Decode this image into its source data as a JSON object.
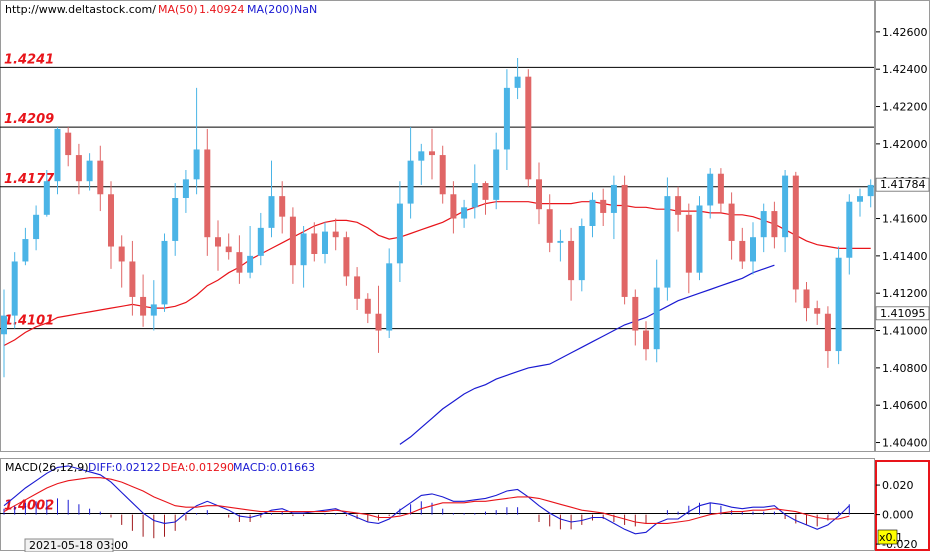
{
  "header": {
    "site": "http://www.deltastock.com/",
    "ma50_label": "MA(50)",
    "ma50_value": "1.40924",
    "ma200_label": "MA(200)",
    "ma200_value": "NaN"
  },
  "macd_header": {
    "name": "MACD(26,12,9)",
    "diff": "DIFF:0.02122",
    "dea": "DEA:0.01290",
    "macd": "MACD:0.01663"
  },
  "footer": {
    "date": "2021-05-18 03:00",
    "zoom": "x0.1"
  },
  "colors": {
    "up": "#4ab4e6",
    "down": "#e06666",
    "ma50": "#e8141a",
    "ma200": "#1a1ad2",
    "level": "#e8141a",
    "frame_red": "#e8141a"
  },
  "chart_data": [
    {
      "type": "candlestick",
      "ylim": [
        1.4036,
        1.4276
      ],
      "yticks": [
        "1.40400",
        "1.40600",
        "1.40800",
        "1.41000",
        "1.41200",
        "1.41400",
        "1.41600",
        "1.41800",
        "1.42000",
        "1.42200",
        "1.42400",
        "1.42600"
      ],
      "levels": [
        {
          "label": "1.4241",
          "value": 1.4241
        },
        {
          "label": "1.4209",
          "value": 1.4209
        },
        {
          "label": "1.4177",
          "value": 1.4177
        },
        {
          "label": "1.4101",
          "value": 1.4101
        },
        {
          "label": "1.4002",
          "value": 1.4002
        }
      ],
      "price_tags": [
        {
          "label": "1.41784",
          "value": 1.41784
        },
        {
          "label": "1.41095",
          "value": 1.41095
        }
      ],
      "series": [
        {
          "name": "MA(50)",
          "values": [
            1.4092,
            1.4095,
            1.4099,
            1.4102,
            1.4104,
            1.4107,
            1.4108,
            1.4109,
            1.411,
            1.4111,
            1.4112,
            1.4113,
            1.4114,
            1.4113,
            1.4112,
            1.4112,
            1.4113,
            1.4115,
            1.4119,
            1.4124,
            1.4127,
            1.4131,
            1.4134,
            1.4138,
            1.4141,
            1.4144,
            1.4147,
            1.415,
            1.4153,
            1.4156,
            1.4158,
            1.4159,
            1.4159,
            1.4158,
            1.4155,
            1.4151,
            1.4149,
            1.415,
            1.4152,
            1.4154,
            1.4156,
            1.4158,
            1.4161,
            1.4164,
            1.4166,
            1.4168,
            1.4169,
            1.4169,
            1.4169,
            1.4169,
            1.4168,
            1.4168,
            1.4168,
            1.4168,
            1.4169,
            1.4169,
            1.4168,
            1.4167,
            1.4167,
            1.4166,
            1.4166,
            1.4165,
            1.4165,
            1.4164,
            1.4164,
            1.4164,
            1.4163,
            1.4163,
            1.4162,
            1.4162,
            1.4161,
            1.4159,
            1.4157,
            1.4154,
            1.4151,
            1.4148,
            1.4146,
            1.4145,
            1.4144,
            1.4144,
            1.4144,
            1.4144
          ]
        },
        {
          "name": "MA(200)",
          "values": [
            null,
            null,
            null,
            null,
            null,
            null,
            null,
            null,
            null,
            null,
            null,
            null,
            null,
            null,
            null,
            null,
            null,
            null,
            null,
            null,
            null,
            null,
            null,
            null,
            null,
            null,
            null,
            null,
            null,
            null,
            null,
            null,
            null,
            null,
            null,
            null,
            null,
            1.4039,
            1.4043,
            1.4048,
            1.4053,
            1.4058,
            1.4062,
            1.4066,
            1.4069,
            1.4071,
            1.4074,
            1.4076,
            1.4078,
            1.408,
            1.4081,
            1.4082,
            1.4085,
            1.4088,
            1.4091,
            1.4094,
            1.4097,
            1.41,
            1.4103,
            1.4105,
            1.4107,
            1.411,
            1.4113,
            1.4116,
            1.4118,
            1.412,
            1.4122,
            1.4124,
            1.4126,
            1.4128,
            1.4131,
            1.4133,
            1.4135
          ]
        }
      ],
      "candles": [
        [
          1.4098,
          1.4108,
          1.4075,
          1.4122
        ],
        [
          1.4108,
          1.4137,
          1.4101,
          1.4142
        ],
        [
          1.4137,
          1.4149,
          1.4135,
          1.4155
        ],
        [
          1.4149,
          1.4162,
          1.4143,
          1.4167
        ],
        [
          1.4162,
          1.418,
          1.4161,
          1.4186
        ],
        [
          1.418,
          1.4208,
          1.4173,
          1.4209
        ],
        [
          1.4206,
          1.4194,
          1.4188,
          1.4209
        ],
        [
          1.4194,
          1.418,
          1.4173,
          1.42
        ],
        [
          1.418,
          1.4191,
          1.4175,
          1.4195
        ],
        [
          1.4191,
          1.4173,
          1.4164,
          1.4199
        ],
        [
          1.4173,
          1.4145,
          1.4133,
          1.418
        ],
        [
          1.4145,
          1.4137,
          1.4123,
          1.4151
        ],
        [
          1.4137,
          1.4118,
          1.4108,
          1.4148
        ],
        [
          1.4118,
          1.4108,
          1.4102,
          1.413
        ],
        [
          1.4108,
          1.4114,
          1.41,
          1.4127
        ],
        [
          1.4114,
          1.4148,
          1.411,
          1.4152
        ],
        [
          1.4148,
          1.4171,
          1.414,
          1.4179
        ],
        [
          1.4171,
          1.4181,
          1.4163,
          1.4186
        ],
        [
          1.4181,
          1.4197,
          1.4173,
          1.423
        ],
        [
          1.4197,
          1.415,
          1.414,
          1.4208
        ],
        [
          1.415,
          1.4145,
          1.4132,
          1.4159
        ],
        [
          1.4145,
          1.4142,
          1.4138,
          1.4152
        ],
        [
          1.4142,
          1.4131,
          1.4125,
          1.4151
        ],
        [
          1.4131,
          1.414,
          1.4128,
          1.4156
        ],
        [
          1.414,
          1.4155,
          1.4135,
          1.4163
        ],
        [
          1.4155,
          1.4172,
          1.415,
          1.4191
        ],
        [
          1.4172,
          1.4161,
          1.4152,
          1.418
        ],
        [
          1.4161,
          1.4135,
          1.4125,
          1.4166
        ],
        [
          1.4135,
          1.4152,
          1.4123,
          1.4156
        ],
        [
          1.4152,
          1.4141,
          1.4137,
          1.4158
        ],
        [
          1.4141,
          1.4153,
          1.4136,
          1.4158
        ],
        [
          1.4153,
          1.415,
          1.4143,
          1.416
        ],
        [
          1.415,
          1.4129,
          1.4124,
          1.4153
        ],
        [
          1.4129,
          1.4117,
          1.4111,
          1.4134
        ],
        [
          1.4117,
          1.4109,
          1.4104,
          1.412
        ],
        [
          1.4109,
          1.41,
          1.4088,
          1.4124
        ],
        [
          1.41,
          1.4136,
          1.4096,
          1.4144
        ],
        [
          1.4136,
          1.4168,
          1.4126,
          1.418
        ],
        [
          1.4168,
          1.4191,
          1.416,
          1.4209
        ],
        [
          1.4191,
          1.4196,
          1.4178,
          1.42
        ],
        [
          1.4196,
          1.4194,
          1.4181,
          1.4208
        ],
        [
          1.4194,
          1.4173,
          1.4168,
          1.4199
        ],
        [
          1.4173,
          1.416,
          1.4152,
          1.418
        ],
        [
          1.416,
          1.4166,
          1.4155,
          1.417
        ],
        [
          1.4166,
          1.4179,
          1.416,
          1.4189
        ],
        [
          1.4179,
          1.417,
          1.4162,
          1.418
        ],
        [
          1.417,
          1.4197,
          1.4165,
          1.4206
        ],
        [
          1.4197,
          1.423,
          1.4186,
          1.424
        ],
        [
          1.423,
          1.4236,
          1.4224,
          1.4246
        ],
        [
          1.4236,
          1.4181,
          1.4177,
          1.424
        ],
        [
          1.4181,
          1.4165,
          1.4157,
          1.419
        ],
        [
          1.4165,
          1.4147,
          1.4142,
          1.4173
        ],
        [
          1.4147,
          1.4148,
          1.4137,
          1.4154
        ],
        [
          1.4148,
          1.4127,
          1.4116,
          1.4155
        ],
        [
          1.4127,
          1.4156,
          1.4121,
          1.416
        ],
        [
          1.4156,
          1.417,
          1.415,
          1.4174
        ],
        [
          1.417,
          1.4163,
          1.4156,
          1.4176
        ],
        [
          1.4163,
          1.4178,
          1.4149,
          1.4183
        ],
        [
          1.4178,
          1.4118,
          1.4114,
          1.4183
        ],
        [
          1.4118,
          1.41,
          1.4092,
          1.4122
        ],
        [
          1.41,
          1.409,
          1.4084,
          1.4105
        ],
        [
          1.409,
          1.4123,
          1.4083,
          1.4138
        ],
        [
          1.4123,
          1.4172,
          1.4116,
          1.4182
        ],
        [
          1.4172,
          1.4162,
          1.4153,
          1.4177
        ],
        [
          1.4162,
          1.4131,
          1.412,
          1.4168
        ],
        [
          1.4131,
          1.4167,
          1.4127,
          1.4172
        ],
        [
          1.4167,
          1.4184,
          1.416,
          1.4187
        ],
        [
          1.4184,
          1.4168,
          1.4163,
          1.4187
        ],
        [
          1.4168,
          1.4148,
          1.4138,
          1.4174
        ],
        [
          1.4148,
          1.4137,
          1.4133,
          1.4155
        ],
        [
          1.4137,
          1.415,
          1.413,
          1.4158
        ],
        [
          1.415,
          1.4164,
          1.4142,
          1.4168
        ],
        [
          1.4164,
          1.415,
          1.4144,
          1.4169
        ],
        [
          1.415,
          1.4183,
          1.4142,
          1.4186
        ],
        [
          1.4183,
          1.4122,
          1.4115,
          1.4185
        ],
        [
          1.4122,
          1.4112,
          1.4105,
          1.4126
        ],
        [
          1.4112,
          1.4109,
          1.4103,
          1.4116
        ],
        [
          1.4109,
          1.4089,
          1.408,
          1.4113
        ],
        [
          1.4089,
          1.4139,
          1.4082,
          1.4145
        ],
        [
          1.4139,
          1.4169,
          1.413,
          1.4173
        ],
        [
          1.4169,
          1.4172,
          1.4161,
          1.4176
        ],
        [
          1.4172,
          1.4178,
          1.4166,
          1.4181
        ]
      ]
    },
    {
      "type": "bar+line",
      "title": "MACD(26,12,9)",
      "ylim": [
        -0.024,
        0.037
      ],
      "yticks": [
        "0.020",
        "0.000",
        "-0.020"
      ],
      "series": [
        {
          "name": "DIFF",
          "values": [
            0.006,
            0.012,
            0.018,
            0.023,
            0.028,
            0.032,
            0.033,
            0.031,
            0.029,
            0.027,
            0.022,
            0.015,
            0.008,
            0.001,
            -0.004,
            -0.006,
            -0.005,
            0.001,
            0.006,
            0.009,
            0.006,
            0.003,
            -0.001,
            -0.002,
            0.0,
            0.003,
            0.004,
            0.001,
            0.001,
            0.002,
            0.003,
            0.004,
            0.001,
            -0.002,
            -0.005,
            -0.006,
            -0.003,
            0.003,
            0.008,
            0.013,
            0.014,
            0.012,
            0.009,
            0.009,
            0.01,
            0.011,
            0.013,
            0.016,
            0.017,
            0.012,
            0.006,
            0.001,
            -0.003,
            -0.005,
            -0.004,
            -0.002,
            -0.002,
            -0.006,
            -0.01,
            -0.013,
            -0.012,
            -0.006,
            -0.003,
            -0.003,
            0.002,
            0.006,
            0.008,
            0.007,
            0.005,
            0.004,
            0.005,
            0.005,
            0.006,
            0.0,
            -0.004,
            -0.007,
            -0.01,
            -0.007,
            -0.001,
            0.006
          ]
        },
        {
          "name": "DEA",
          "values": [
            0.002,
            0.006,
            0.01,
            0.014,
            0.018,
            0.021,
            0.023,
            0.024,
            0.025,
            0.025,
            0.024,
            0.022,
            0.019,
            0.016,
            0.012,
            0.009,
            0.006,
            0.005,
            0.005,
            0.006,
            0.006,
            0.005,
            0.004,
            0.003,
            0.002,
            0.002,
            0.002,
            0.002,
            0.002,
            0.002,
            0.002,
            0.003,
            0.002,
            0.001,
            0.0,
            -0.002,
            -0.002,
            -0.001,
            0.001,
            0.004,
            0.006,
            0.008,
            0.008,
            0.008,
            0.009,
            0.009,
            0.01,
            0.011,
            0.012,
            0.012,
            0.011,
            0.009,
            0.007,
            0.005,
            0.003,
            0.002,
            0.001,
            -0.001,
            -0.003,
            -0.005,
            -0.006,
            -0.006,
            -0.006,
            -0.005,
            -0.004,
            -0.002,
            0.0,
            0.001,
            0.002,
            0.002,
            0.003,
            0.003,
            0.004,
            0.003,
            0.002,
            0.0,
            -0.002,
            -0.003,
            -0.003,
            -0.001
          ]
        }
      ]
    }
  ]
}
